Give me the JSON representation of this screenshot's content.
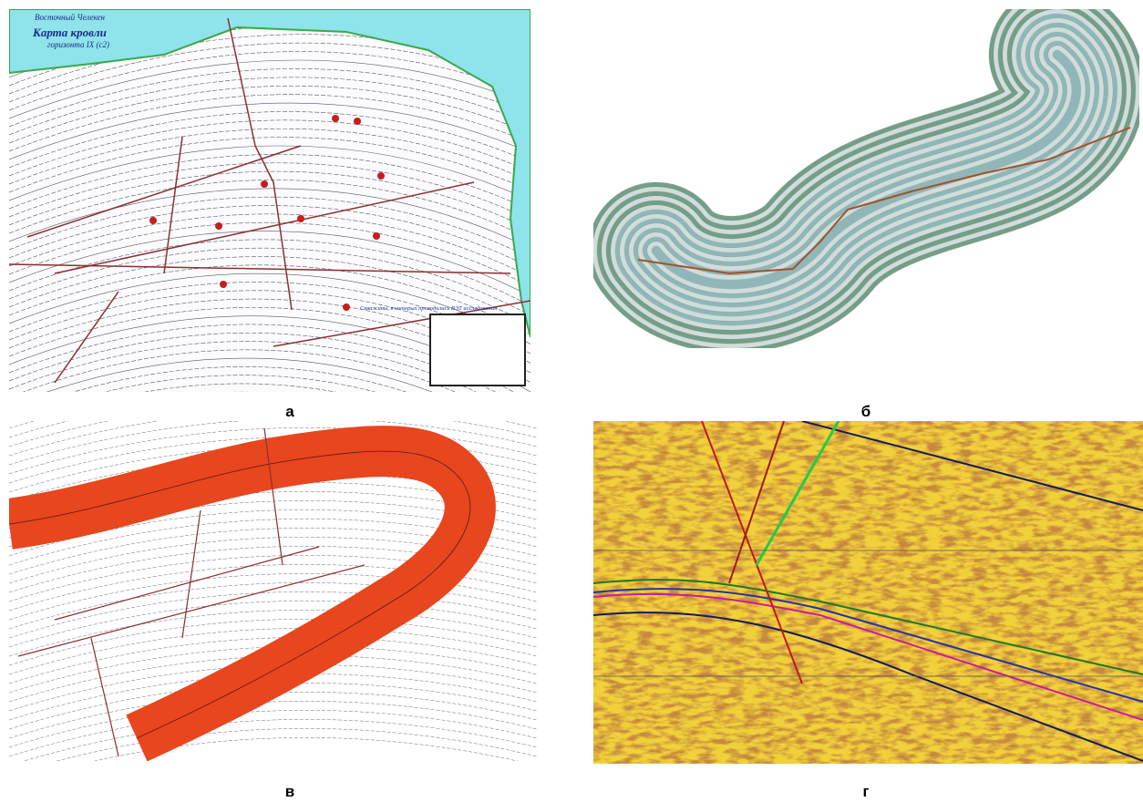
{
  "panels": [
    {
      "label": "а",
      "title": [
        "Восточный Челекен",
        "Карта кровли",
        "горизонта IX (с2)"
      ],
      "note": "Скважины, в которых проводились ВЭТ исследования"
    },
    {
      "label": "б"
    },
    {
      "label": "в"
    },
    {
      "label": "г"
    }
  ]
}
